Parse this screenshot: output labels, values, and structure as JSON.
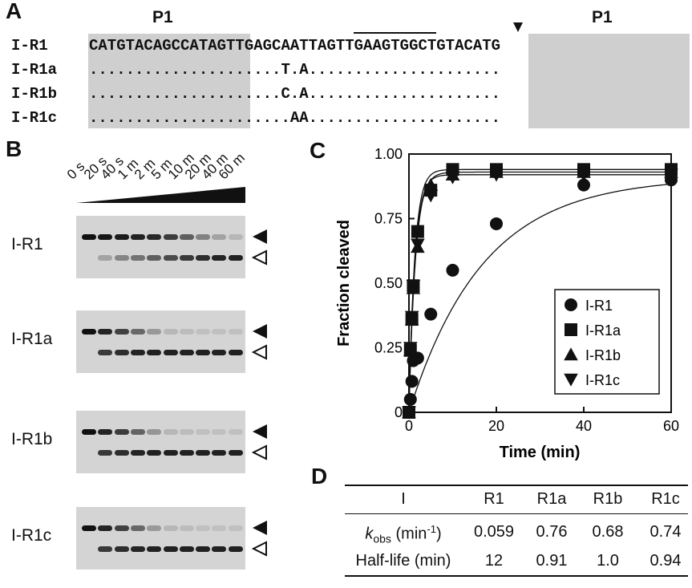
{
  "panels": {
    "a": "A",
    "b": "B",
    "c": "C",
    "d": "D"
  },
  "sequence": {
    "p1_left": "P1",
    "p1_right": "P1",
    "rows": [
      {
        "name": "I-R1",
        "seq": "CATGTACAGCCATAGTTGAGCAATTAGTTGAAGTGGCTGTACATG"
      },
      {
        "name": "I-R1a",
        "seq": ".....................T.A....................."
      },
      {
        "name": "I-R1b",
        "seq": ".....................C.A....................."
      },
      {
        "name": "I-R1c",
        "seq": "......................AA....................."
      }
    ]
  },
  "gel": {
    "lanes": [
      "0 s",
      "20 s",
      "40 s",
      "1 m",
      "2 m",
      "5 m",
      "10 m",
      "20 m",
      "40 m",
      "60 m"
    ],
    "samples": [
      "I-R1",
      "I-R1a",
      "I-R1b",
      "I-R1c"
    ],
    "substrate_intensity": [
      [
        1.0,
        0.97,
        0.95,
        0.92,
        0.88,
        0.78,
        0.6,
        0.42,
        0.25,
        0.15
      ],
      [
        1.0,
        0.9,
        0.75,
        0.55,
        0.3,
        0.15,
        0.12,
        0.1,
        0.1,
        0.1
      ],
      [
        1.0,
        0.9,
        0.78,
        0.58,
        0.32,
        0.15,
        0.12,
        0.1,
        0.1,
        0.1
      ],
      [
        1.0,
        0.9,
        0.76,
        0.56,
        0.3,
        0.15,
        0.12,
        0.1,
        0.1,
        0.1
      ]
    ],
    "product_intensity": [
      [
        0.0,
        0.25,
        0.4,
        0.5,
        0.6,
        0.7,
        0.8,
        0.85,
        0.9,
        0.92
      ],
      [
        0.0,
        0.8,
        0.85,
        0.9,
        0.92,
        0.92,
        0.92,
        0.92,
        0.92,
        0.92
      ],
      [
        0.0,
        0.8,
        0.85,
        0.9,
        0.92,
        0.92,
        0.92,
        0.92,
        0.92,
        0.92
      ],
      [
        0.0,
        0.8,
        0.85,
        0.9,
        0.92,
        0.92,
        0.92,
        0.92,
        0.92,
        0.92
      ]
    ]
  },
  "chart_data": {
    "type": "scatter",
    "xlabel": "Time (min)",
    "ylabel": "Fraction cleaved",
    "xlim": [
      0,
      60
    ],
    "ylim": [
      0,
      1.0
    ],
    "x_ticks": [
      "0",
      "20",
      "40",
      "60"
    ],
    "y_ticks": [
      "0",
      "0.25",
      "0.50",
      "0.75",
      "1.00"
    ],
    "series": [
      {
        "name": "I-R1",
        "marker": "circle",
        "k": 0.059,
        "plateau": 0.91,
        "x": [
          0,
          0.33,
          0.67,
          1,
          2,
          5,
          10,
          20,
          40,
          60
        ],
        "y": [
          0,
          0.05,
          0.12,
          0.2,
          0.21,
          0.38,
          0.55,
          0.73,
          0.88,
          0.9
        ]
      },
      {
        "name": "I-R1a",
        "marker": "square",
        "k": 0.76,
        "plateau": 0.94,
        "x": [
          0,
          0.33,
          0.67,
          1,
          2,
          5,
          10,
          20,
          40,
          60
        ],
        "y": [
          0,
          0.24,
          0.36,
          0.49,
          0.7,
          0.86,
          0.94,
          0.94,
          0.94,
          0.94
        ]
      },
      {
        "name": "I-R1b",
        "marker": "triangle",
        "k": 0.68,
        "plateau": 0.93,
        "x": [
          0,
          0.33,
          0.67,
          1,
          2,
          5,
          10,
          20,
          40,
          60
        ],
        "y": [
          0,
          0.24,
          0.36,
          0.48,
          0.64,
          0.88,
          0.92,
          0.93,
          0.93,
          0.93
        ]
      },
      {
        "name": "I-R1c",
        "marker": "triangle-down",
        "k": 0.74,
        "plateau": 0.92,
        "x": [
          0,
          0.33,
          0.67,
          1,
          2,
          5,
          10,
          20,
          40,
          60
        ],
        "y": [
          0,
          0.25,
          0.37,
          0.49,
          0.65,
          0.84,
          0.91,
          0.92,
          0.92,
          0.92
        ]
      }
    ]
  },
  "table": {
    "headers": [
      "I",
      "R1",
      "R1a",
      "R1b",
      "R1c"
    ],
    "rows": [
      {
        "label_main": "k",
        "label_sub": "obs",
        "label_rest": " (min",
        "label_sup": "-1",
        "label_end": ")",
        "values": [
          "0.059",
          "0.76",
          "0.68",
          "0.74"
        ]
      },
      {
        "label": "Half-life (min)",
        "values": [
          "12",
          "0.91",
          "1.0",
          "0.94"
        ]
      }
    ]
  }
}
